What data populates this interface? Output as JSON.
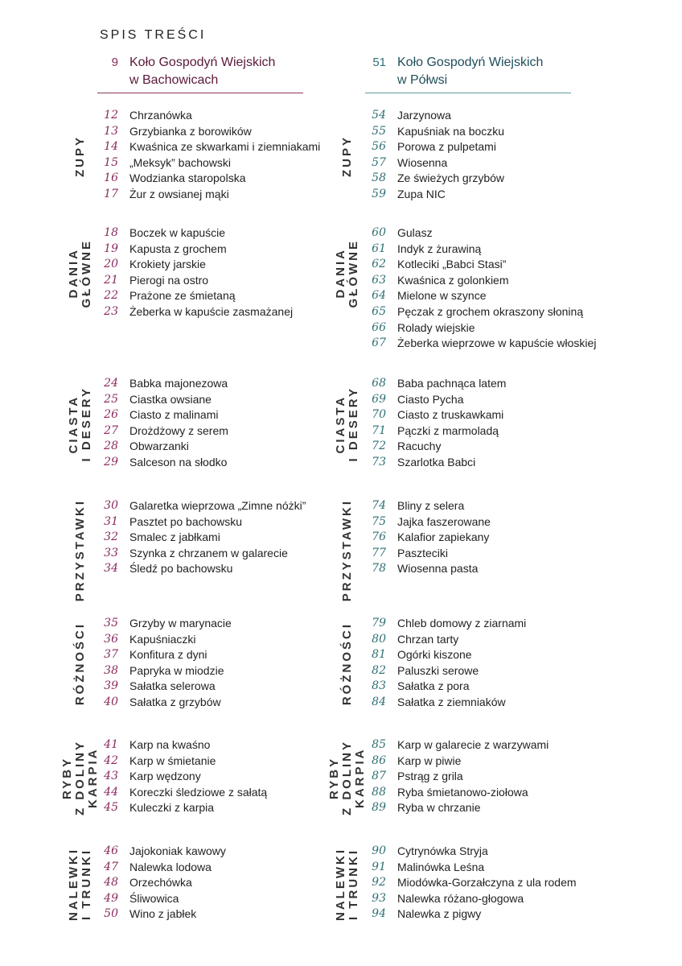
{
  "title": "SPIS TREŚCI",
  "colors": {
    "left_accent": "#8a2a5e",
    "right_accent": "#2f7075"
  },
  "columns": [
    {
      "page": "9",
      "name": "Koło Gospodyń Wiejskich\nw Bachowicach",
      "sections": [
        {
          "label": "ZUPY",
          "items": [
            [
              "12",
              "Chrzanówka"
            ],
            [
              "13",
              "Grzybianka z borowików"
            ],
            [
              "14",
              "Kwaśnica ze skwarkami i ziemniakami"
            ],
            [
              "15",
              "„Meksyk” bachowski"
            ],
            [
              "16",
              "Wodzianka staropolska"
            ],
            [
              "17",
              "Żur z owsianej mąki"
            ]
          ]
        },
        {
          "label": "DANIA\nGŁÓWNE",
          "items": [
            [
              "18",
              "Boczek w kapuście"
            ],
            [
              "19",
              "Kapusta z grochem"
            ],
            [
              "20",
              "Krokiety jarskie"
            ],
            [
              "21",
              "Pierogi na ostro"
            ],
            [
              "22",
              "Prażone ze śmietaną"
            ],
            [
              "23",
              "Żeberka w kapuście zasmażanej"
            ]
          ]
        },
        {
          "label": "CIASTA\nI DESERY",
          "items": [
            [
              "24",
              "Babka majonezowa"
            ],
            [
              "25",
              "Ciastka owsiane"
            ],
            [
              "26",
              "Ciasto z malinami"
            ],
            [
              "27",
              "Drożdżowy z serem"
            ],
            [
              "28",
              "Obwarzanki"
            ],
            [
              "29",
              "Salceson na słodko"
            ]
          ]
        },
        {
          "label": "PRZYSTAWKI",
          "items": [
            [
              "30",
              "Galaretka wieprzowa „Zimne nóżki”"
            ],
            [
              "31",
              "Pasztet po bachowsku"
            ],
            [
              "32",
              "Smalec z jabłkami"
            ],
            [
              "33",
              "Szynka z chrzanem w galarecie"
            ],
            [
              "34",
              "Śledź po bachowsku"
            ]
          ]
        },
        {
          "label": "RÓŻNOŚCI",
          "items": [
            [
              "35",
              "Grzyby w marynacie"
            ],
            [
              "36",
              "Kapuśniaczki"
            ],
            [
              "37",
              "Konfitura z dyni"
            ],
            [
              "38",
              "Papryka w miodzie"
            ],
            [
              "39",
              "Sałatka selerowa"
            ],
            [
              "40",
              "Sałatka z grzybów"
            ]
          ]
        },
        {
          "label": "RYBY\nZ DOLINY\nKARPIA",
          "items": [
            [
              "41",
              "Karp na kwaśno"
            ],
            [
              "42",
              "Karp w śmietanie"
            ],
            [
              "43",
              "Karp wędzony"
            ],
            [
              "44",
              "Koreczki śledziowe z sałatą"
            ],
            [
              "45",
              "Kuleczki z karpia"
            ]
          ]
        },
        {
          "label": "NALEWKI\nI TRUNKI",
          "items": [
            [
              "46",
              "Jajokoniak kawowy"
            ],
            [
              "47",
              "Nalewka lodowa"
            ],
            [
              "48",
              "Orzechówka"
            ],
            [
              "49",
              "Śliwowica"
            ],
            [
              "50",
              "Wino z jabłek"
            ]
          ]
        }
      ]
    },
    {
      "page": "51",
      "name": "Koło Gospodyń Wiejskich\nw Półwsi",
      "sections": [
        {
          "label": "ZUPY",
          "items": [
            [
              "54",
              "Jarzynowa"
            ],
            [
              "55",
              "Kapuśniak na boczku"
            ],
            [
              "56",
              "Porowa z pulpetami"
            ],
            [
              "57",
              "Wiosenna"
            ],
            [
              "58",
              "Ze świeżych grzybów"
            ],
            [
              "59",
              "Zupa NIC"
            ]
          ]
        },
        {
          "label": "DANIA\nGŁÓWNE",
          "items": [
            [
              "60",
              "Gulasz"
            ],
            [
              "61",
              "Indyk z żurawiną"
            ],
            [
              "62",
              "Kotleciki „Babci Stasi”"
            ],
            [
              "63",
              "Kwaśnica z golonkiem"
            ],
            [
              "64",
              "Mielone w szynce"
            ],
            [
              "65",
              "Pęczak z grochem okraszony słoniną"
            ],
            [
              "66",
              "Rolady wiejskie"
            ],
            [
              "67",
              "Żeberka wieprzowe w kapuście włoskiej"
            ]
          ]
        },
        {
          "label": "CIASTA\nI DESERY",
          "items": [
            [
              "68",
              "Baba pachnąca latem"
            ],
            [
              "69",
              "Ciasto Pycha"
            ],
            [
              "70",
              "Ciasto z truskawkami"
            ],
            [
              "71",
              "Pączki z marmoladą"
            ],
            [
              "72",
              "Racuchy"
            ],
            [
              "73",
              "Szarlotka Babci"
            ]
          ]
        },
        {
          "label": "PRZYSTAWKI",
          "items": [
            [
              "74",
              "Bliny z selera"
            ],
            [
              "75",
              "Jajka faszerowane"
            ],
            [
              "76",
              "Kalafior zapiekany"
            ],
            [
              "77",
              "Paszteciki"
            ],
            [
              "78",
              "Wiosenna pasta"
            ]
          ]
        },
        {
          "label": "RÓŻNOŚCI",
          "items": [
            [
              "79",
              "Chleb domowy z ziarnami"
            ],
            [
              "80",
              "Chrzan tarty"
            ],
            [
              "81",
              "Ogórki kiszone"
            ],
            [
              "82",
              "Paluszki serowe"
            ],
            [
              "83",
              "Sałatka z pora"
            ],
            [
              "84",
              "Sałatka z ziemniaków"
            ]
          ]
        },
        {
          "label": "RYBY\nZ DOLINY\nKARPIA",
          "items": [
            [
              "85",
              "Karp w galarecie z warzywami"
            ],
            [
              "86",
              "Karp w piwie"
            ],
            [
              "87",
              "Pstrąg z grila"
            ],
            [
              "88",
              "Ryba śmietanowo-ziołowa"
            ],
            [
              "89",
              "Ryba w chrzanie"
            ]
          ]
        },
        {
          "label": "NALEWKI\nI TRUNKI",
          "items": [
            [
              "90",
              "Cytrynówka Stryja"
            ],
            [
              "91",
              "Malinówka Leśna"
            ],
            [
              "92",
              "Miodówka-Gorzałczyna z ula rodem"
            ],
            [
              "93",
              "Nalewka różano-głogowa"
            ],
            [
              "94",
              "Nalewka z pigwy"
            ]
          ]
        }
      ]
    }
  ]
}
